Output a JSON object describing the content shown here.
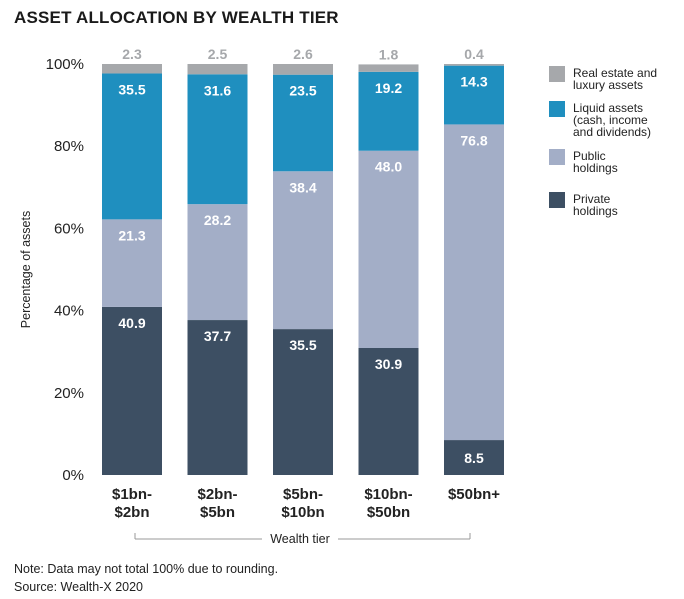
{
  "title": "ASSET ALLOCATION BY WEALTH TIER",
  "note": "Note: Data may not total 100% due to rounding.",
  "source": "Source: Wealth-X 2020",
  "chart_data": {
    "type": "bar",
    "stacked": true,
    "categories": [
      "$1bn-\n$2bn",
      "$2bn-\n$5bn",
      "$5bn-\n$10bn",
      "$10bn-\n$50bn",
      "$50bn+"
    ],
    "series": [
      {
        "name": "Private holdings",
        "color": "#3d4f63",
        "values": [
          40.9,
          37.7,
          35.5,
          30.9,
          8.5
        ]
      },
      {
        "name": "Public holdings",
        "color": "#a3aec7",
        "values": [
          21.3,
          28.2,
          38.4,
          48.0,
          76.8
        ]
      },
      {
        "name": "Liquid assets (cash, income and dividends)",
        "color": "#1f8fbf",
        "values": [
          35.5,
          31.6,
          23.5,
          19.2,
          14.3
        ]
      },
      {
        "name": "Real estate and luxury assets",
        "color": "#a6a8ab",
        "values": [
          2.3,
          2.5,
          2.6,
          1.8,
          0.4
        ]
      }
    ],
    "value_labels": [
      [
        "40.9",
        "37.7",
        "35.5",
        "30.9",
        "8.5"
      ],
      [
        "21.3",
        "28.2",
        "38.4",
        "48.0",
        "76.8"
      ],
      [
        "35.5",
        "31.6",
        "23.5",
        "19.2",
        "14.3"
      ],
      [
        "2.3",
        "2.5",
        "2.6",
        "1.8",
        "0.4"
      ]
    ],
    "legend": [
      {
        "text": "Real estate and\nluxury assets",
        "color": "#a6a8ab"
      },
      {
        "text": "Liquid assets\n(cash, income\nand dividends)",
        "color": "#1f8fbf"
      },
      {
        "text": "Public\nholdings",
        "color": "#a3aec7"
      },
      {
        "text": "Private\nholdings",
        "color": "#3d4f63"
      }
    ],
    "legend_position": "right",
    "yticks": [
      "0%",
      "20%",
      "40%",
      "60%",
      "80%",
      "100%"
    ],
    "ylim": [
      0,
      100
    ],
    "ylabel": "Percentage of assets",
    "xlabel": "Wealth tier",
    "grid": false
  }
}
